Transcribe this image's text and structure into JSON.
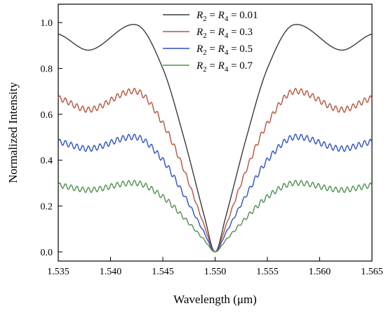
{
  "chart_data": {
    "type": "line",
    "xlabel": "Wavelength (μm)",
    "ylabel": "Normalized Intensity",
    "xlim": [
      1.535,
      1.565
    ],
    "ylim": [
      -0.04,
      1.08
    ],
    "x_ticks": [
      1.535,
      1.54,
      1.545,
      1.55,
      1.555,
      1.56,
      1.565
    ],
    "x_tick_labels": [
      "1.535",
      "1.540",
      "1.545",
      "1.550",
      "1.555",
      "1.560",
      "1.565"
    ],
    "y_ticks": [
      0.0,
      0.2,
      0.4,
      0.6,
      0.8,
      1.0
    ],
    "y_tick_labels": [
      "0.0",
      "0.2",
      "0.4",
      "0.6",
      "0.8",
      "1.0"
    ],
    "grid": false,
    "legend_position": "top-center",
    "series": [
      {
        "name": "R2 = R4 = 0.01",
        "legend_text": [
          "R",
          "2",
          " = ",
          "R",
          "4",
          " = 0.01"
        ],
        "color": "#3a3a3a",
        "x": [
          1.535,
          1.538,
          1.5425,
          1.545,
          1.547,
          1.549,
          1.55,
          1.551,
          1.553,
          1.555,
          1.5575,
          1.562,
          1.565
        ],
        "y": [
          0.95,
          0.88,
          0.99,
          0.8,
          0.5,
          0.15,
          0.0,
          0.15,
          0.5,
          0.8,
          0.99,
          0.88,
          0.95
        ]
      },
      {
        "name": "R2 = R4 = 0.3",
        "legend_text": [
          "R",
          "2",
          " = ",
          "R",
          "4",
          " = 0.3"
        ],
        "color": "#b5543a",
        "x": [
          1.535,
          1.538,
          1.5425,
          1.545,
          1.547,
          1.549,
          1.55,
          1.551,
          1.553,
          1.555,
          1.5575,
          1.562,
          1.565
        ],
        "y": [
          0.67,
          0.62,
          0.7,
          0.56,
          0.36,
          0.11,
          0.0,
          0.11,
          0.36,
          0.56,
          0.7,
          0.62,
          0.67
        ]
      },
      {
        "name": "R2 = R4 = 0.5",
        "legend_text": [
          "R",
          "2",
          " = ",
          "R",
          "4",
          " = 0.5"
        ],
        "color": "#2f4fc4",
        "x": [
          1.535,
          1.538,
          1.5425,
          1.545,
          1.547,
          1.549,
          1.55,
          1.551,
          1.553,
          1.555,
          1.5575,
          1.562,
          1.565
        ],
        "y": [
          0.48,
          0.45,
          0.5,
          0.4,
          0.25,
          0.08,
          0.0,
          0.08,
          0.25,
          0.4,
          0.5,
          0.45,
          0.48
        ]
      },
      {
        "name": "R2 = R4 = 0.7",
        "legend_text": [
          "R",
          "2",
          " = ",
          "R",
          "4",
          " = 0.7"
        ],
        "color": "#4f8f4f",
        "x": [
          1.535,
          1.538,
          1.5425,
          1.545,
          1.547,
          1.549,
          1.55,
          1.551,
          1.553,
          1.555,
          1.5575,
          1.562,
          1.565
        ],
        "y": [
          0.29,
          0.27,
          0.3,
          0.24,
          0.15,
          0.05,
          0.0,
          0.05,
          0.15,
          0.24,
          0.3,
          0.27,
          0.29
        ]
      }
    ]
  }
}
